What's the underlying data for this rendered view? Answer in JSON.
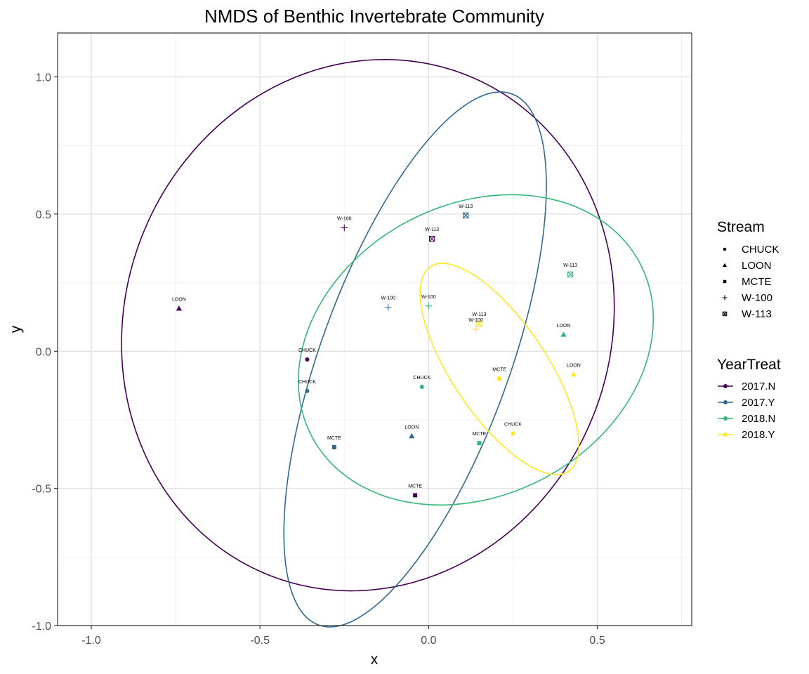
{
  "chart_data": {
    "type": "scatter",
    "title": "NMDS of Benthic Invertebrate Community",
    "xlabel": "x",
    "ylabel": "y",
    "xlim": [
      -1.1,
      0.78
    ],
    "ylim": [
      -1.0,
      1.16
    ],
    "x_ticks": [
      -1.0,
      -0.5,
      0.0,
      0.5
    ],
    "y_ticks": [
      1.0,
      0.5,
      0.0,
      -0.5,
      -1.0
    ],
    "x_tick_labels": [
      "-1.0",
      "-0.5",
      "0.0",
      "0.5"
    ],
    "y_tick_labels": [
      "1.0",
      "0.5",
      "0.0",
      "-0.5",
      "-1.0"
    ],
    "grid": true,
    "legend_position": "right",
    "legends": {
      "shape": {
        "title": "Stream",
        "items": [
          {
            "label": "CHUCK",
            "shape": "circle"
          },
          {
            "label": "LOON",
            "shape": "triangle"
          },
          {
            "label": "MCTE",
            "shape": "square"
          },
          {
            "label": "W-100",
            "shape": "plus"
          },
          {
            "label": "W-113",
            "shape": "boxed-x"
          }
        ]
      },
      "color": {
        "title": "YearTreat",
        "items": [
          {
            "label": "2017.N",
            "color": "#440154"
          },
          {
            "label": "2017.Y",
            "color": "#31688e"
          },
          {
            "label": "2018.N",
            "color": "#35b779"
          },
          {
            "label": "2018.Y",
            "color": "#fde725"
          }
        ]
      }
    },
    "points": [
      {
        "x": -0.74,
        "y": 0.155,
        "label": "LOON",
        "stream": "LOON",
        "group": "2017.N"
      },
      {
        "x": -0.25,
        "y": 0.45,
        "label": "W-100",
        "stream": "W-100",
        "group": "2017.N"
      },
      {
        "x": 0.01,
        "y": 0.41,
        "label": "W-113",
        "stream": "W-113",
        "group": "2017.N"
      },
      {
        "x": -0.36,
        "y": -0.03,
        "label": "CHUCK",
        "stream": "CHUCK",
        "group": "2017.N"
      },
      {
        "x": -0.04,
        "y": -0.525,
        "label": "MCTE",
        "stream": "MCTE",
        "group": "2017.N"
      },
      {
        "x": 0.11,
        "y": 0.495,
        "label": "W-113",
        "stream": "W-113",
        "group": "2017.Y"
      },
      {
        "x": -0.12,
        "y": 0.16,
        "label": "W-100",
        "stream": "W-100",
        "group": "2017.Y"
      },
      {
        "x": -0.36,
        "y": -0.145,
        "label": "CHUCK",
        "stream": "CHUCK",
        "group": "2017.Y"
      },
      {
        "x": -0.28,
        "y": -0.35,
        "label": "MCTE",
        "stream": "MCTE",
        "group": "2017.Y"
      },
      {
        "x": -0.05,
        "y": -0.31,
        "label": "LOON",
        "stream": "LOON",
        "group": "2017.Y"
      },
      {
        "x": 0.0,
        "y": 0.165,
        "label": "W-100",
        "stream": "W-100",
        "group": "2018.N"
      },
      {
        "x": 0.42,
        "y": 0.28,
        "label": "W-113",
        "stream": "W-113",
        "group": "2018.N"
      },
      {
        "x": 0.4,
        "y": 0.06,
        "label": "LOON",
        "stream": "LOON",
        "group": "2018.N"
      },
      {
        "x": -0.02,
        "y": -0.13,
        "label": "CHUCK",
        "stream": "CHUCK",
        "group": "2018.N"
      },
      {
        "x": 0.15,
        "y": -0.335,
        "label": "MCTE",
        "stream": "MCTE",
        "group": "2018.N"
      },
      {
        "x": 0.15,
        "y": 0.1,
        "label": "W-113",
        "stream": "W-113",
        "group": "2018.Y"
      },
      {
        "x": 0.14,
        "y": 0.08,
        "label": "W-100",
        "stream": "W-100",
        "group": "2018.Y"
      },
      {
        "x": 0.21,
        "y": -0.1,
        "label": "MCTE",
        "stream": "MCTE",
        "group": "2018.Y"
      },
      {
        "x": 0.43,
        "y": -0.085,
        "label": "LOON",
        "stream": "LOON",
        "group": "2018.Y"
      },
      {
        "x": 0.25,
        "y": -0.3,
        "label": "CHUCK",
        "stream": "CHUCK",
        "group": "2018.Y"
      }
    ],
    "ellipses": [
      {
        "group": "2017.N",
        "cx": -0.18,
        "cy": 0.095,
        "rx": 0.72,
        "ry": 0.98,
        "angle_deg": 21
      },
      {
        "group": "2017.Y",
        "cx": -0.04,
        "cy": -0.03,
        "rx": 0.28,
        "ry": 1.03,
        "angle_deg": 20
      },
      {
        "group": "2018.N",
        "cx": 0.14,
        "cy": 0.005,
        "rx": 0.55,
        "ry": 0.53,
        "angle_deg": -28
      },
      {
        "group": "2018.Y",
        "cx": 0.21,
        "cy": -0.065,
        "rx": 0.14,
        "ry": 0.45,
        "angle_deg": -34
      }
    ]
  }
}
